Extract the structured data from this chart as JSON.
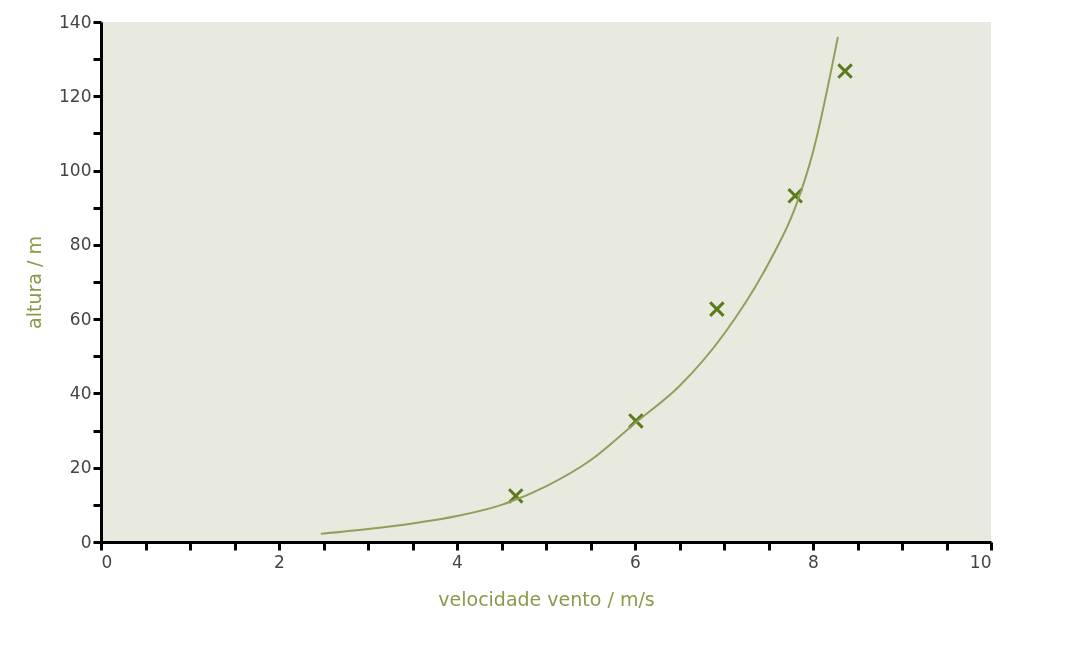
{
  "chart_data": {
    "type": "scatter",
    "xlabel": "velocidade vento / m/s",
    "ylabel": "altura / m",
    "xlim": [
      0,
      10
    ],
    "ylim": [
      0,
      140
    ],
    "xticks": [
      0,
      {
        "value": 0.5,
        "label": null
      },
      {
        "value": 1,
        "label": null
      },
      {
        "value": 1.5,
        "label": null
      },
      2,
      {
        "value": 2.5,
        "label": null
      },
      {
        "value": 3,
        "label": null
      },
      {
        "value": 3.5,
        "label": null
      },
      4,
      {
        "value": 4.5,
        "label": null
      },
      {
        "value": 5,
        "label": null
      },
      {
        "value": 5.5,
        "label": null
      },
      6,
      {
        "value": 6.5,
        "label": null
      },
      {
        "value": 7,
        "label": null
      },
      {
        "value": 7.5,
        "label": null
      },
      8,
      {
        "value": 8.5,
        "label": null
      },
      {
        "value": 9,
        "label": null
      },
      {
        "value": 9.5,
        "label": null
      },
      10
    ],
    "yticks": [
      0,
      {
        "value": 10,
        "label": null
      },
      20,
      {
        "value": 30,
        "label": null
      },
      40,
      {
        "value": 50,
        "label": null
      },
      60,
      {
        "value": 70,
        "label": null
      },
      80,
      {
        "value": 90,
        "label": null
      },
      100,
      {
        "value": 110,
        "label": null
      },
      120,
      {
        "value": 130,
        "label": null
      },
      140
    ],
    "grid": false,
    "marker": "cross",
    "series": [
      {
        "type": "scatter",
        "color": "#5b7a1c",
        "x": [
          4.66,
          6.01,
          6.92,
          7.8,
          8.36
        ],
        "values": [
          12.4,
          32.6,
          62.7,
          93.2,
          126.8
        ]
      },
      {
        "type": "line",
        "color": "#8fa05a",
        "marker": "none",
        "line_style": "solid",
        "x": [
          2.47,
          3,
          3.5,
          4,
          4.5,
          5,
          5.5,
          6,
          6.5,
          7,
          7.5,
          7.8,
          8,
          8.28
        ],
        "values": [
          2.2,
          3.5,
          5,
          7,
          10,
          15,
          22,
          32,
          42,
          56,
          75,
          90,
          105,
          136
        ]
      }
    ]
  }
}
